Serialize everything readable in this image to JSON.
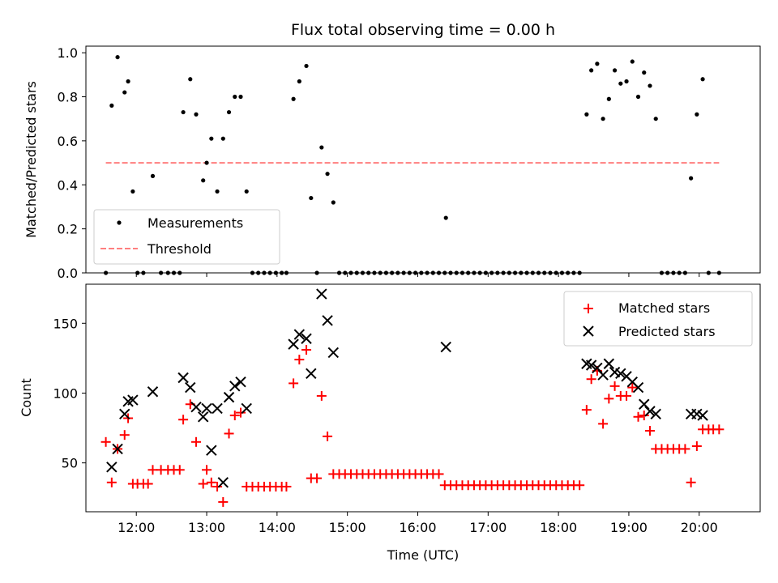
{
  "chart_data": [
    {
      "type": "scatter",
      "title": "Flux total observing time = 0.00 h",
      "xlabel": "",
      "ylabel": "Matched/Predicted stars",
      "xlim": [
        "11:17",
        "20:52"
      ],
      "ylim": [
        0,
        1.03
      ],
      "xticks": [
        "12:00",
        "13:00",
        "14:00",
        "15:00",
        "16:00",
        "17:00",
        "18:00",
        "19:00",
        "20:00"
      ],
      "yticks": [
        "0.0",
        "0.2",
        "0.4",
        "0.6",
        "0.8",
        "1.0"
      ],
      "legend_position": "lower-left",
      "grid": false,
      "series": [
        {
          "name": "Measurements",
          "color": "#000000",
          "marker": "dot",
          "points": [
            [
              "11:34",
              0.0
            ],
            [
              "11:39",
              0.76
            ],
            [
              "11:44",
              0.98
            ],
            [
              "11:50",
              0.82
            ],
            [
              "11:53",
              0.87
            ],
            [
              "11:57",
              0.37
            ],
            [
              "12:01",
              0.0
            ],
            [
              "12:06",
              0.0
            ],
            [
              "12:14",
              0.44
            ],
            [
              "12:21",
              0.0
            ],
            [
              "12:27",
              0.0
            ],
            [
              "12:32",
              0.0
            ],
            [
              "12:37",
              0.0
            ],
            [
              "12:40",
              0.73
            ],
            [
              "12:46",
              0.88
            ],
            [
              "12:51",
              0.72
            ],
            [
              "12:57",
              0.42
            ],
            [
              "13:00",
              0.5
            ],
            [
              "13:04",
              0.61
            ],
            [
              "13:09",
              0.37
            ],
            [
              "13:14",
              0.61
            ],
            [
              "13:19",
              0.73
            ],
            [
              "13:24",
              0.8
            ],
            [
              "13:29",
              0.8
            ],
            [
              "13:34",
              0.37
            ],
            [
              "13:39",
              0.0
            ],
            [
              "13:44",
              0.0
            ],
            [
              "13:49",
              0.0
            ],
            [
              "13:54",
              0.0
            ],
            [
              "13:59",
              0.0
            ],
            [
              "14:04",
              0.0
            ],
            [
              "14:08",
              0.0
            ],
            [
              "14:14",
              0.79
            ],
            [
              "14:19",
              0.87
            ],
            [
              "14:25",
              0.94
            ],
            [
              "14:29",
              0.34
            ],
            [
              "14:34",
              0.0
            ],
            [
              "14:38",
              0.57
            ],
            [
              "14:43",
              0.45
            ],
            [
              "14:48",
              0.32
            ],
            [
              "14:53",
              0.0
            ],
            [
              "14:58",
              0.0
            ],
            [
              "15:03",
              0.0
            ],
            [
              "15:08",
              0.0
            ],
            [
              "15:13",
              0.0
            ],
            [
              "15:18",
              0.0
            ],
            [
              "15:23",
              0.0
            ],
            [
              "15:28",
              0.0
            ],
            [
              "15:33",
              0.0
            ],
            [
              "15:38",
              0.0
            ],
            [
              "15:43",
              0.0
            ],
            [
              "15:48",
              0.0
            ],
            [
              "15:53",
              0.0
            ],
            [
              "15:58",
              0.0
            ],
            [
              "16:03",
              0.0
            ],
            [
              "16:08",
              0.0
            ],
            [
              "16:13",
              0.0
            ],
            [
              "16:18",
              0.0
            ],
            [
              "16:23",
              0.0
            ],
            [
              "16:24",
              0.25
            ],
            [
              "16:28",
              0.0
            ],
            [
              "16:33",
              0.0
            ],
            [
              "16:38",
              0.0
            ],
            [
              "16:43",
              0.0
            ],
            [
              "16:48",
              0.0
            ],
            [
              "16:53",
              0.0
            ],
            [
              "16:58",
              0.0
            ],
            [
              "17:03",
              0.0
            ],
            [
              "17:08",
              0.0
            ],
            [
              "17:13",
              0.0
            ],
            [
              "17:18",
              0.0
            ],
            [
              "17:23",
              0.0
            ],
            [
              "17:28",
              0.0
            ],
            [
              "17:33",
              0.0
            ],
            [
              "17:38",
              0.0
            ],
            [
              "17:43",
              0.0
            ],
            [
              "17:48",
              0.0
            ],
            [
              "17:53",
              0.0
            ],
            [
              "17:58",
              0.0
            ],
            [
              "18:03",
              0.0
            ],
            [
              "18:08",
              0.0
            ],
            [
              "18:13",
              0.0
            ],
            [
              "18:18",
              0.0
            ],
            [
              "18:24",
              0.72
            ],
            [
              "18:28",
              0.92
            ],
            [
              "18:33",
              0.95
            ],
            [
              "18:38",
              0.7
            ],
            [
              "18:43",
              0.79
            ],
            [
              "18:48",
              0.92
            ],
            [
              "18:53",
              0.86
            ],
            [
              "18:58",
              0.87
            ],
            [
              "19:03",
              0.96
            ],
            [
              "19:08",
              0.8
            ],
            [
              "19:13",
              0.91
            ],
            [
              "19:18",
              0.85
            ],
            [
              "19:23",
              0.7
            ],
            [
              "19:28",
              0.0
            ],
            [
              "19:33",
              0.0
            ],
            [
              "19:38",
              0.0
            ],
            [
              "19:43",
              0.0
            ],
            [
              "19:48",
              0.0
            ],
            [
              "19:53",
              0.43
            ],
            [
              "19:58",
              0.72
            ],
            [
              "20:03",
              0.88
            ],
            [
              "20:08",
              0.0
            ],
            [
              "20:17",
              0.0
            ]
          ]
        },
        {
          "name": "Threshold",
          "color": "#ff7f7f",
          "style": "dashed",
          "points": [
            [
              "11:34",
              0.5
            ],
            [
              "20:17",
              0.5
            ]
          ]
        }
      ]
    },
    {
      "type": "scatter",
      "title": "",
      "xlabel": "Time (UTC)",
      "ylabel": "Count",
      "xlim": [
        "11:17",
        "20:52"
      ],
      "ylim": [
        15,
        178
      ],
      "xticks": [
        "12:00",
        "13:00",
        "14:00",
        "15:00",
        "16:00",
        "17:00",
        "18:00",
        "19:00",
        "20:00"
      ],
      "yticks": [
        "50",
        "100",
        "150"
      ],
      "legend_position": "upper-right",
      "grid": false,
      "series": [
        {
          "name": "Matched stars",
          "color": "#ff0000",
          "marker": "plus",
          "points": [
            [
              "11:34",
              65
            ],
            [
              "11:39",
              36
            ],
            [
              "11:44",
              60
            ],
            [
              "11:50",
              70
            ],
            [
              "11:53",
              82
            ],
            [
              "11:57",
              35
            ],
            [
              "12:01",
              35
            ],
            [
              "12:06",
              35
            ],
            [
              "12:10",
              35
            ],
            [
              "12:14",
              45
            ],
            [
              "12:21",
              45
            ],
            [
              "12:27",
              45
            ],
            [
              "12:32",
              45
            ],
            [
              "12:37",
              45
            ],
            [
              "12:40",
              81
            ],
            [
              "12:46",
              92
            ],
            [
              "12:51",
              65
            ],
            [
              "12:57",
              35
            ],
            [
              "13:00",
              45
            ],
            [
              "13:04",
              36
            ],
            [
              "13:09",
              33
            ],
            [
              "13:14",
              22
            ],
            [
              "13:19",
              71
            ],
            [
              "13:24",
              84
            ],
            [
              "13:29",
              86
            ],
            [
              "13:34",
              33
            ],
            [
              "13:39",
              33
            ],
            [
              "13:44",
              33
            ],
            [
              "13:49",
              33
            ],
            [
              "13:54",
              33
            ],
            [
              "13:59",
              33
            ],
            [
              "14:04",
              33
            ],
            [
              "14:08",
              33
            ],
            [
              "14:14",
              107
            ],
            [
              "14:19",
              124
            ],
            [
              "14:25",
              131
            ],
            [
              "14:29",
              39
            ],
            [
              "14:34",
              39
            ],
            [
              "14:38",
              98
            ],
            [
              "14:43",
              69
            ],
            [
              "14:48",
              42
            ],
            [
              "14:53",
              42
            ],
            [
              "14:58",
              42
            ],
            [
              "15:03",
              42
            ],
            [
              "15:08",
              42
            ],
            [
              "15:13",
              42
            ],
            [
              "15:18",
              42
            ],
            [
              "15:23",
              42
            ],
            [
              "15:28",
              42
            ],
            [
              "15:33",
              42
            ],
            [
              "15:38",
              42
            ],
            [
              "15:43",
              42
            ],
            [
              "15:48",
              42
            ],
            [
              "15:53",
              42
            ],
            [
              "15:58",
              42
            ],
            [
              "16:03",
              42
            ],
            [
              "16:08",
              42
            ],
            [
              "16:13",
              42
            ],
            [
              "16:18",
              42
            ],
            [
              "16:23",
              34
            ],
            [
              "16:28",
              34
            ],
            [
              "16:33",
              34
            ],
            [
              "16:38",
              34
            ],
            [
              "16:43",
              34
            ],
            [
              "16:48",
              34
            ],
            [
              "16:53",
              34
            ],
            [
              "16:58",
              34
            ],
            [
              "17:03",
              34
            ],
            [
              "17:08",
              34
            ],
            [
              "17:13",
              34
            ],
            [
              "17:18",
              34
            ],
            [
              "17:23",
              34
            ],
            [
              "17:28",
              34
            ],
            [
              "17:33",
              34
            ],
            [
              "17:38",
              34
            ],
            [
              "17:43",
              34
            ],
            [
              "17:48",
              34
            ],
            [
              "17:53",
              34
            ],
            [
              "17:58",
              34
            ],
            [
              "18:03",
              34
            ],
            [
              "18:08",
              34
            ],
            [
              "18:13",
              34
            ],
            [
              "18:18",
              34
            ],
            [
              "18:24",
              88
            ],
            [
              "18:28",
              110
            ],
            [
              "18:33",
              116
            ],
            [
              "18:38",
              78
            ],
            [
              "18:43",
              96
            ],
            [
              "18:48",
              105
            ],
            [
              "18:53",
              98
            ],
            [
              "18:58",
              98
            ],
            [
              "19:03",
              104
            ],
            [
              "19:08",
              83
            ],
            [
              "19:13",
              84
            ],
            [
              "19:18",
              73
            ],
            [
              "19:23",
              60
            ],
            [
              "19:28",
              60
            ],
            [
              "19:33",
              60
            ],
            [
              "19:38",
              60
            ],
            [
              "19:43",
              60
            ],
            [
              "19:48",
              60
            ],
            [
              "19:53",
              36
            ],
            [
              "19:58",
              62
            ],
            [
              "20:03",
              74
            ],
            [
              "20:08",
              74
            ],
            [
              "20:12",
              74
            ],
            [
              "20:17",
              74
            ]
          ]
        },
        {
          "name": "Predicted stars",
          "color": "#000000",
          "marker": "x",
          "points": [
            [
              "11:39",
              47
            ],
            [
              "11:44",
              60
            ],
            [
              "11:50",
              85
            ],
            [
              "11:53",
              94
            ],
            [
              "11:57",
              95
            ],
            [
              "12:14",
              101
            ],
            [
              "12:40",
              111
            ],
            [
              "12:46",
              104
            ],
            [
              "12:51",
              90
            ],
            [
              "12:57",
              83
            ],
            [
              "13:00",
              89
            ],
            [
              "13:04",
              59
            ],
            [
              "13:09",
              89
            ],
            [
              "13:14",
              36
            ],
            [
              "13:19",
              97
            ],
            [
              "13:24",
              105
            ],
            [
              "13:29",
              108
            ],
            [
              "13:34",
              89
            ],
            [
              "14:14",
              135
            ],
            [
              "14:19",
              142
            ],
            [
              "14:25",
              139
            ],
            [
              "14:29",
              114
            ],
            [
              "14:38",
              171
            ],
            [
              "14:43",
              152
            ],
            [
              "14:48",
              129
            ],
            [
              "16:24",
              133
            ],
            [
              "18:24",
              121
            ],
            [
              "18:28",
              120
            ],
            [
              "18:33",
              118
            ],
            [
              "18:38",
              113
            ],
            [
              "18:43",
              121
            ],
            [
              "18:48",
              115
            ],
            [
              "18:53",
              114
            ],
            [
              "18:58",
              112
            ],
            [
              "19:03",
              108
            ],
            [
              "19:08",
              104
            ],
            [
              "19:13",
              92
            ],
            [
              "19:18",
              87
            ],
            [
              "19:23",
              85
            ],
            [
              "19:53",
              85
            ],
            [
              "19:58",
              85
            ],
            [
              "20:03",
              84
            ]
          ]
        }
      ]
    }
  ]
}
